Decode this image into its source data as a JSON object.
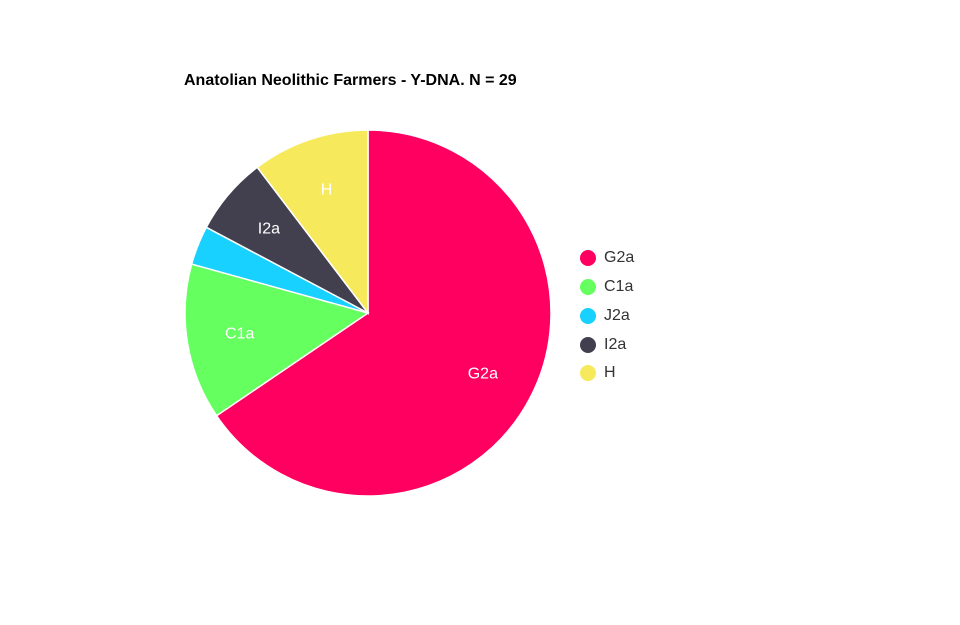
{
  "chart_data": {
    "type": "pie",
    "title": "Anatolian Neolithic Farmers - Y-DNA. N = 29",
    "categories": [
      "G2a",
      "C1a",
      "J2a",
      "I2a",
      "H"
    ],
    "values": [
      19,
      4,
      1,
      2,
      3
    ],
    "colors": [
      "#ff0060",
      "#65ff60",
      "#18d1ff",
      "#42404f",
      "#f6ea5c"
    ],
    "slice_labels_shown": [
      "G2a",
      "C1a",
      "I2a",
      "H"
    ],
    "start_angle_deg": 0,
    "direction": "clockwise",
    "legend_position": "right"
  }
}
